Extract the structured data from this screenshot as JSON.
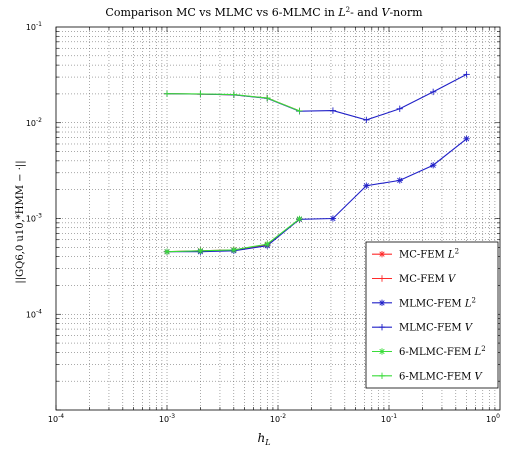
{
  "chart_data": {
    "type": "line",
    "title_parts": [
      "Comparison MC vs MLMC vs 6-MLMC in ",
      "L",
      "2",
      "- and ",
      "V",
      "-norm"
    ],
    "xlabel_base": "h",
    "xlabel_sub": "L",
    "ylabel": "||GQ6,0 u10,*HMM − ·||",
    "x_scale": "log",
    "y_scale": "log",
    "xlim": [
      0.0001,
      1
    ],
    "ylim": [
      1e-05,
      0.1
    ],
    "grid": true,
    "legend_position": "lower-right",
    "x_tick_labels": [
      {
        "value": 0.0001,
        "base": "10",
        "exp": "-4"
      },
      {
        "value": 0.001,
        "base": "10",
        "exp": "-3"
      },
      {
        "value": 0.01,
        "base": "10",
        "exp": "-2"
      },
      {
        "value": 0.1,
        "base": "10",
        "exp": "-1"
      },
      {
        "value": 1,
        "base": "10",
        "exp": "0"
      }
    ],
    "y_tick_labels": [
      {
        "value": 0.1,
        "base": "10",
        "exp": "-1"
      },
      {
        "value": 0.01,
        "base": "10",
        "exp": "-2"
      },
      {
        "value": 0.001,
        "base": "10",
        "exp": "-3"
      },
      {
        "value": 0.0001,
        "base": "10",
        "exp": "-4"
      }
    ],
    "series": [
      {
        "name": "MC-FEM L2",
        "legend_base": "MC-FEM ",
        "legend_math": "L",
        "legend_sup": "2",
        "color": "#ff2a2a",
        "marker": "asterisk",
        "x": [
          0.001,
          0.002,
          0.004,
          0.008,
          0.0156
        ],
        "y": [
          0.00045,
          0.00046,
          0.00047,
          0.00053,
          0.00098
        ]
      },
      {
        "name": "MC-FEM V",
        "legend_base": "MC-FEM ",
        "legend_math": "V",
        "legend_sup": "",
        "color": "#ff2a2a",
        "marker": "plus",
        "x": [
          0.001,
          0.002,
          0.004,
          0.008,
          0.0156
        ],
        "y": [
          0.0201,
          0.0199,
          0.0196,
          0.0181,
          0.0133
        ]
      },
      {
        "name": "MLMC-FEM L2",
        "legend_base": "MLMC-FEM ",
        "legend_math": "L",
        "legend_sup": "2",
        "color": "#2020c8",
        "marker": "asterisk",
        "x": [
          0.001,
          0.002,
          0.004,
          0.008,
          0.0156,
          0.03125,
          0.0625,
          0.125,
          0.25,
          0.5
        ],
        "y": [
          0.00045,
          0.00045,
          0.00046,
          0.00052,
          0.00098,
          0.001,
          0.0022,
          0.0025,
          0.0036,
          0.0068
        ]
      },
      {
        "name": "MLMC-FEM V",
        "legend_base": "MLMC-FEM ",
        "legend_math": "V",
        "legend_sup": "",
        "color": "#2020c8",
        "marker": "plus",
        "x": [
          0.001,
          0.002,
          0.004,
          0.008,
          0.0156,
          0.03125,
          0.0625,
          0.125,
          0.25,
          0.5
        ],
        "y": [
          0.0201,
          0.0199,
          0.0196,
          0.018,
          0.0132,
          0.0134,
          0.0107,
          0.014,
          0.021,
          0.032
        ]
      },
      {
        "name": "6-MLMC-FEM L2",
        "legend_base": "6-MLMC-FEM ",
        "legend_math": "L",
        "legend_sup": "2",
        "color": "#3adc3a",
        "marker": "asterisk",
        "x": [
          0.001,
          0.002,
          0.004,
          0.008,
          0.0156
        ],
        "y": [
          0.00045,
          0.00046,
          0.00047,
          0.00054,
          0.00099
        ]
      },
      {
        "name": "6-MLMC-FEM V",
        "legend_base": "6-MLMC-FEM ",
        "legend_math": "V",
        "legend_sup": "",
        "color": "#3adc3a",
        "marker": "plus",
        "x": [
          0.001,
          0.002,
          0.004,
          0.008,
          0.0156
        ],
        "y": [
          0.0201,
          0.02,
          0.0197,
          0.0181,
          0.0133
        ]
      }
    ]
  }
}
